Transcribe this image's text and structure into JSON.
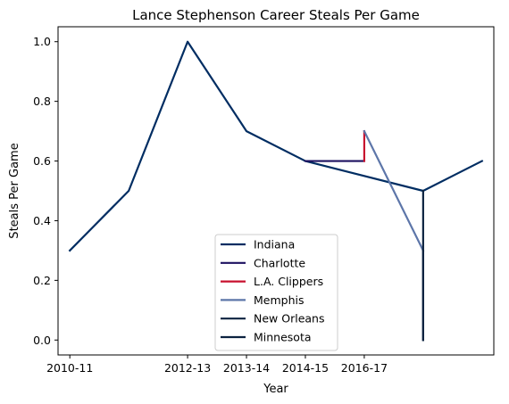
{
  "chart_data": {
    "type": "line",
    "title": "Lance Stephenson Career Steals Per Game",
    "xlabel": "Year",
    "ylabel": "Steals Per Game",
    "ylim": [
      -0.05,
      1.05
    ],
    "xlim": [
      -0.2,
      7.2
    ],
    "x_tick_labels": [
      {
        "pos": 0,
        "label": "2010-11"
      },
      {
        "pos": 2,
        "label": "2012-13"
      },
      {
        "pos": 3,
        "label": "2013-14"
      },
      {
        "pos": 4,
        "label": "2014-15"
      },
      {
        "pos": 5,
        "label": "2016-17"
      }
    ],
    "y_ticks": [
      "0.0",
      "0.2",
      "0.4",
      "0.6",
      "0.8",
      "1.0"
    ],
    "legend_position": "lower center",
    "series": [
      {
        "name": "Indiana",
        "color": "#002D62",
        "x": [
          0,
          1,
          2,
          3,
          4,
          6,
          7
        ],
        "y": [
          0.3,
          0.5,
          1.0,
          0.7,
          0.6,
          0.5,
          0.6
        ]
      },
      {
        "name": "Charlotte",
        "color": "#1D1160",
        "x": [
          4,
          5
        ],
        "y": [
          0.6,
          0.6
        ]
      },
      {
        "name": "L.A. Clippers",
        "color": "#C8102E",
        "x": [
          5,
          5
        ],
        "y": [
          0.6,
          0.7
        ]
      },
      {
        "name": "Memphis",
        "color": "#5D76A9",
        "x": [
          5,
          6
        ],
        "y": [
          0.7,
          0.3
        ]
      },
      {
        "name": "New Orleans",
        "color": "#0C2340",
        "x": [
          6,
          6
        ],
        "y": [
          0.3,
          0.0
        ]
      },
      {
        "name": "Minnesota",
        "color": "#0C2340",
        "x": [
          6,
          6
        ],
        "y": [
          0.0,
          0.5
        ]
      }
    ]
  }
}
